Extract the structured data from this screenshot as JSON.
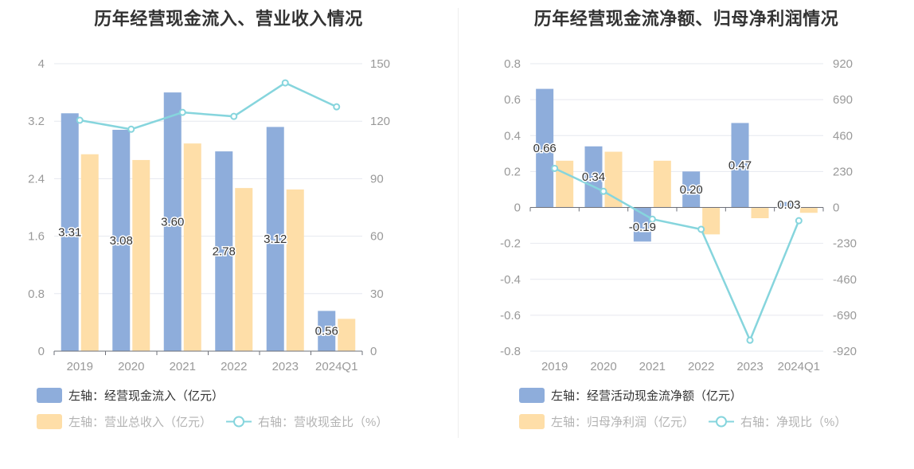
{
  "colors": {
    "blue": "#8eaddb",
    "yellow": "#fedea8",
    "teal": "#86d5dd",
    "axis_text": "#999999",
    "grid": "#e6e8ef"
  },
  "chart_data": [
    {
      "type": "bar",
      "title": "历年经营现金流入、营业收入情况",
      "categories": [
        "2019",
        "2020",
        "2021",
        "2022",
        "2023",
        "2024Q1"
      ],
      "y_left": {
        "ylim": [
          0,
          4
        ],
        "ticks": [
          "0",
          "0.8",
          "1.6",
          "2.4",
          "3.2",
          "4"
        ]
      },
      "y_right": {
        "ylim": [
          0,
          150
        ],
        "ticks": [
          "0",
          "30",
          "60",
          "90",
          "120",
          "150"
        ]
      },
      "series": [
        {
          "name": "左轴：经营现金流入（亿元）",
          "axis": "left",
          "kind": "bar",
          "color": "#8eaddb",
          "values": [
            3.31,
            3.08,
            3.6,
            2.78,
            3.12,
            0.56
          ],
          "labels": [
            "3.31",
            "3.08",
            "3.60",
            "2.78",
            "3.12",
            "0.56"
          ]
        },
        {
          "name": "左轴：营业总收入（亿元）",
          "axis": "left",
          "kind": "bar",
          "color": "#fedea8",
          "values": [
            2.74,
            2.66,
            2.89,
            2.27,
            2.25,
            0.45
          ]
        },
        {
          "name": "右轴：营收现金比（%）",
          "axis": "right",
          "kind": "line",
          "color": "#86d5dd",
          "values": [
            120.5,
            115.8,
            124.6,
            122.5,
            140.0,
            127.5
          ]
        }
      ],
      "legend": "bottom"
    },
    {
      "type": "bar",
      "title": "历年经营现金流净额、归母净利润情况",
      "categories": [
        "2019",
        "2020",
        "2021",
        "2022",
        "2023",
        "2024Q1"
      ],
      "y_left": {
        "ylim": [
          -0.8,
          0.8
        ],
        "ticks": [
          "-0.8",
          "-0.6",
          "-0.4",
          "-0.2",
          "0",
          "0.2",
          "0.4",
          "0.6",
          "0.8"
        ]
      },
      "y_right": {
        "ylim": [
          -920,
          920
        ],
        "ticks": [
          "-920",
          "-690",
          "-460",
          "-230",
          "0",
          "230",
          "460",
          "690",
          "920"
        ]
      },
      "series": [
        {
          "name": "左轴：经营活动现金流净额（亿元）",
          "axis": "left",
          "kind": "bar",
          "color": "#8eaddb",
          "values": [
            0.66,
            0.34,
            -0.19,
            0.2,
            0.47,
            0.03
          ],
          "labels": [
            "0.66",
            "0.34",
            "-0.19",
            "0.20",
            "0.47",
            "0.03"
          ]
        },
        {
          "name": "左轴：归母净利润（亿元）",
          "axis": "left",
          "kind": "bar",
          "color": "#fedea8",
          "values": [
            0.26,
            0.31,
            0.26,
            -0.15,
            -0.06,
            -0.03
          ]
        },
        {
          "name": "右轴：净现比（%）",
          "axis": "right",
          "kind": "line",
          "color": "#86d5dd",
          "values": [
            250,
            103,
            -75,
            -140,
            -850,
            -85
          ]
        }
      ],
      "legend": "bottom"
    }
  ]
}
